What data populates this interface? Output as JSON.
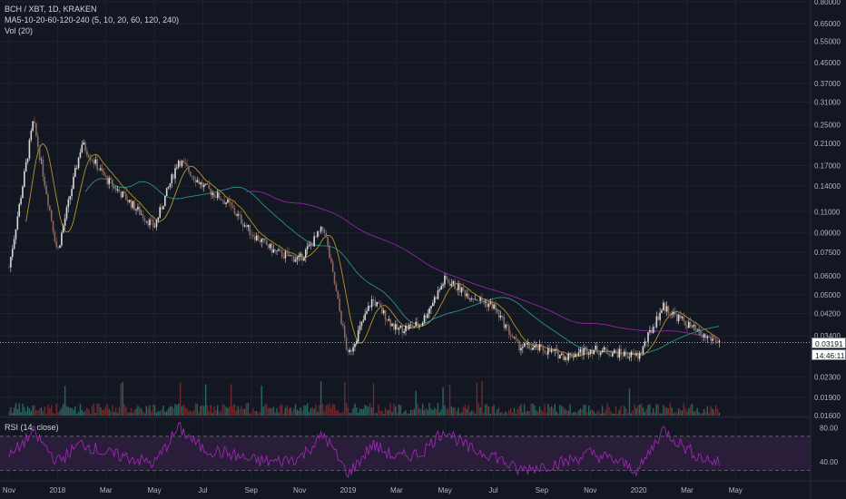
{
  "header": {
    "symbol": "BCH / XBT, 1D, KRAKEN",
    "ma_indicator": "MA5-10-20-60-120-240 (5, 10, 20, 60, 120, 240)",
    "volume_indicator": "Vol (20)",
    "rsi_indicator": "RSI (14, close)"
  },
  "price_axis": {
    "labels": [
      "0.80000",
      "0.65000",
      "0.55000",
      "0.45000",
      "0.37000",
      "0.31000",
      "0.25000",
      "0.21000",
      "0.17000",
      "0.14000",
      "0.11000",
      "0.09000",
      "0.07500",
      "0.06000",
      "0.05000",
      "0.04200",
      "0.03400",
      "0.02300",
      "0.01900",
      "0.01600"
    ],
    "current_price": "0.03191",
    "countdown": "14:46:11"
  },
  "rsi_axis": {
    "labels": [
      "80.00",
      "40.00"
    ],
    "upper_band": 70,
    "lower_band": 30
  },
  "time_axis": {
    "labels": [
      "Nov",
      "2018",
      "Mar",
      "May",
      "Jul",
      "Sep",
      "Nov",
      "2019",
      "Mar",
      "May",
      "Jul",
      "Sep",
      "Nov",
      "2020",
      "Mar",
      "May"
    ]
  },
  "colors": {
    "background": "#131722",
    "grid": "#1e222d",
    "candle_up": "#d9d9d9",
    "candle_down": "#8a6a60",
    "ma_short": "#c9a227",
    "ma_mid": "#2e9e8f",
    "ma_long": "#9c27b0",
    "rsi_line": "#9c27b0",
    "rsi_fill": "#2a1d3a",
    "volume_up": "#2e7d6e",
    "volume_down": "#8b2e2e"
  },
  "chart_data": [
    {
      "type": "line",
      "title": "BCH / XBT, 1D, KRAKEN",
      "y_scale": "log",
      "ylim": [
        0.016,
        0.8
      ],
      "x_ticks": [
        "Nov",
        "2018",
        "Mar",
        "May",
        "Jul",
        "Sep",
        "Nov",
        "2019",
        "Mar",
        "May",
        "Jul",
        "Sep",
        "Nov",
        "2020",
        "Mar",
        "May"
      ],
      "series": [
        {
          "name": "BCH / XBT",
          "x": [
            0,
            0.5,
            1,
            1.5,
            2,
            2.5,
            3,
            3.5,
            4,
            4.5,
            5,
            5.5,
            6,
            6.5,
            7,
            7.5,
            8,
            8.5,
            9,
            9.5,
            10,
            10.5,
            11,
            11.5,
            12,
            12.5,
            13,
            13.5,
            14,
            14.3,
            14.7
          ],
          "values": [
            0.065,
            0.26,
            0.075,
            0.21,
            0.15,
            0.12,
            0.095,
            0.18,
            0.14,
            0.12,
            0.09,
            0.075,
            0.07,
            0.095,
            0.028,
            0.048,
            0.036,
            0.038,
            0.058,
            0.05,
            0.045,
            0.031,
            0.03,
            0.028,
            0.03,
            0.029,
            0.028,
            0.045,
            0.038,
            0.034,
            0.032
          ]
        }
      ]
    },
    {
      "type": "line",
      "title": "RSI (14, close)",
      "ylim": [
        20,
        90
      ],
      "series": [
        {
          "name": "RSI",
          "x": [
            0,
            0.5,
            1,
            1.5,
            2,
            2.5,
            3,
            3.5,
            4,
            4.5,
            5,
            5.5,
            6,
            6.5,
            7,
            7.5,
            8,
            8.5,
            9,
            9.5,
            10,
            10.5,
            11,
            11.5,
            12,
            12.5,
            13,
            13.5,
            14,
            14.3,
            14.7
          ],
          "values": [
            45,
            75,
            40,
            62,
            50,
            45,
            38,
            80,
            55,
            50,
            42,
            40,
            45,
            72,
            25,
            60,
            45,
            50,
            78,
            55,
            48,
            30,
            35,
            40,
            50,
            42,
            30,
            78,
            55,
            45,
            38
          ]
        }
      ]
    }
  ]
}
